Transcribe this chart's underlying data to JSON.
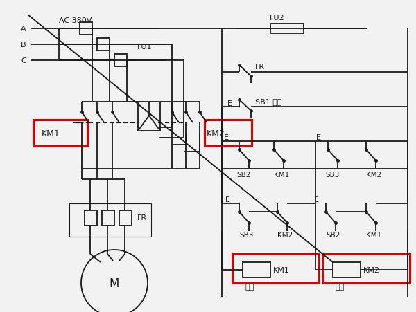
{
  "bg_color": "#f2f2f2",
  "line_color": "#1a1a1a",
  "red_color": "#dd0000",
  "fig_w": 6.0,
  "fig_h": 4.52,
  "dpi": 100,
  "labels": {
    "ac": "AC 380V",
    "fu1": "FU1",
    "fu2": "FU2",
    "fr_main": "FR",
    "fr_ctrl": "FR",
    "km1_main": "KM1",
    "km2_main": "KM2",
    "m": "M",
    "sb1": "SB1 停車",
    "sb2": "SB2",
    "sb3": "SB3",
    "sb3b": "SB3",
    "sb2b": "SB2",
    "km1_c": "KM1",
    "km2_c": "KM2",
    "km1_coil": "KM1",
    "km2_coil": "KM2",
    "km2_aux": "KM2",
    "km1_aux": "KM1",
    "phase_a": "A",
    "phase_b": "B",
    "phase_c": "C",
    "zhengzhuan": "正轉",
    "fanzhuan": "反轉"
  }
}
